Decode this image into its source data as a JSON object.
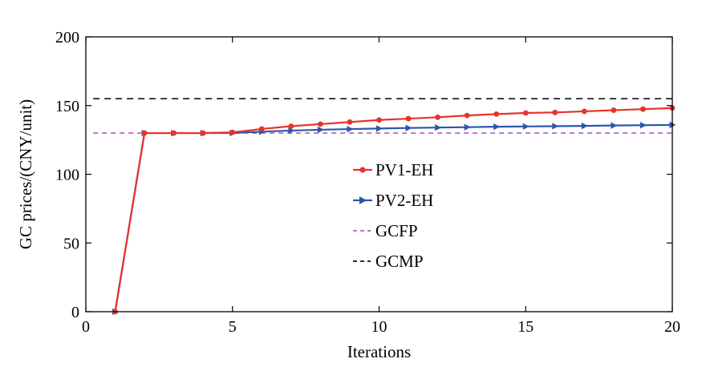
{
  "chart_data": {
    "type": "line",
    "title": "",
    "xlabel": "Iterations",
    "ylabel": "GC prices/(CNY/unit)",
    "xlim": [
      0,
      20
    ],
    "ylim": [
      0,
      200
    ],
    "xticks": [
      0,
      5,
      10,
      15,
      20
    ],
    "yticks": [
      0,
      50,
      100,
      150,
      200
    ],
    "grid": false,
    "legend_position": "center",
    "series": [
      {
        "name": "PV1-EH",
        "color": "#e8322a",
        "line_style": "solid",
        "marker": "circle",
        "x": [
          1,
          2,
          3,
          4,
          5,
          6,
          7,
          8,
          9,
          10,
          11,
          12,
          13,
          14,
          15,
          16,
          17,
          18,
          19,
          20
        ],
        "values": [
          0,
          130,
          130,
          130,
          130.5,
          133,
          135,
          136.5,
          138,
          139.5,
          140.5,
          141.5,
          142.8,
          143.8,
          144.6,
          145,
          145.8,
          146.6,
          147.4,
          148.2
        ]
      },
      {
        "name": "PV2-EH",
        "color": "#2b58a8",
        "line_style": "solid",
        "marker": "triangle-right",
        "x": [
          1,
          2,
          3,
          4,
          5,
          6,
          7,
          8,
          9,
          10,
          11,
          12,
          13,
          14,
          15,
          16,
          17,
          18,
          19,
          20
        ],
        "values": [
          0,
          130,
          130,
          130,
          130,
          131,
          131.8,
          132.4,
          132.9,
          133.3,
          133.7,
          134,
          134.3,
          134.6,
          134.8,
          135,
          135.2,
          135.5,
          135.7,
          135.9
        ]
      },
      {
        "name": "GCFP",
        "color": "#b05cc4",
        "line_style": "dashed",
        "marker": "none",
        "x": [
          0.25,
          20
        ],
        "values": [
          130,
          130
        ]
      },
      {
        "name": "GCMP",
        "color": "#111111",
        "line_style": "dashed",
        "marker": "none",
        "x": [
          0.25,
          20
        ],
        "values": [
          155,
          155
        ]
      }
    ]
  }
}
